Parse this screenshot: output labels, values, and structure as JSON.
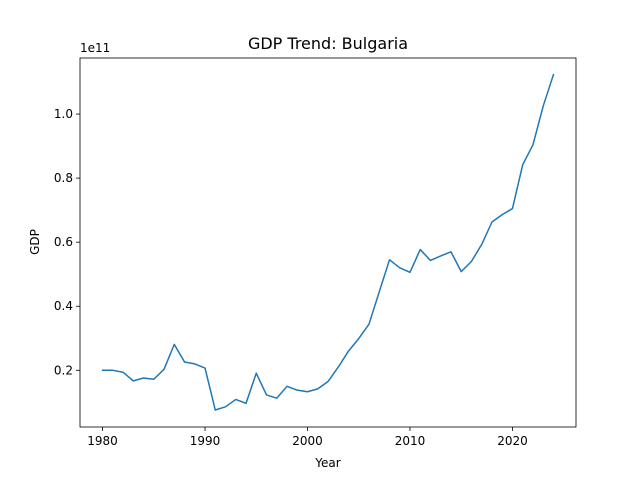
{
  "chart_data": {
    "type": "line",
    "title": "GDP Trend: Bulgaria",
    "xlabel": "Year",
    "ylabel": "GDP",
    "y_offset_label": "1e11",
    "y_scale": 100000000000.0,
    "xlim": [
      1977.8,
      2026.2
    ],
    "ylim": [
      2300000000,
      117500000000
    ],
    "grid": false,
    "line_color": "#1f77b4",
    "x_ticks": [
      1980,
      1990,
      2000,
      2010,
      2020
    ],
    "x_tick_labels": [
      "1980",
      "1990",
      "2000",
      "2010",
      "2020"
    ],
    "y_ticks": [
      20000000000,
      40000000000,
      60000000000,
      80000000000,
      100000000000
    ],
    "y_tick_labels": [
      "0.2",
      "0.4",
      "0.6",
      "0.8",
      "1.0"
    ],
    "series": [
      {
        "x": [
          1980,
          1981,
          1982,
          1983,
          1984,
          1985,
          1986,
          1987,
          1988,
          1989,
          1990,
          1991,
          1992,
          1993,
          1994,
          1995,
          1996,
          1997,
          1998,
          1999,
          2000,
          2001,
          2002,
          2003,
          2004,
          2005,
          2006,
          2007,
          2008,
          2009,
          2010,
          2011,
          2012,
          2013,
          2014,
          2015,
          2016,
          2017,
          2018,
          2019,
          2020,
          2021,
          2022,
          2023,
          2024
        ],
        "values": [
          20000000000,
          20000000000,
          19400000000,
          16700000000,
          17600000000,
          17200000000,
          20300000000,
          28100000000,
          22600000000,
          22000000000,
          20700000000,
          7600000000,
          8600000000,
          10900000000,
          9700000000,
          19100000000,
          12300000000,
          11300000000,
          15000000000,
          13800000000,
          13300000000,
          14200000000,
          16500000000,
          21000000000,
          26000000000,
          29900000000,
          34400000000,
          44500000000,
          54500000000,
          52000000000,
          50600000000,
          57700000000,
          54300000000,
          55700000000,
          57000000000,
          50800000000,
          54000000000,
          59300000000,
          66300000000,
          68600000000,
          70500000000,
          84200000000,
          90400000000,
          102500000000,
          112300000000
        ]
      }
    ]
  }
}
